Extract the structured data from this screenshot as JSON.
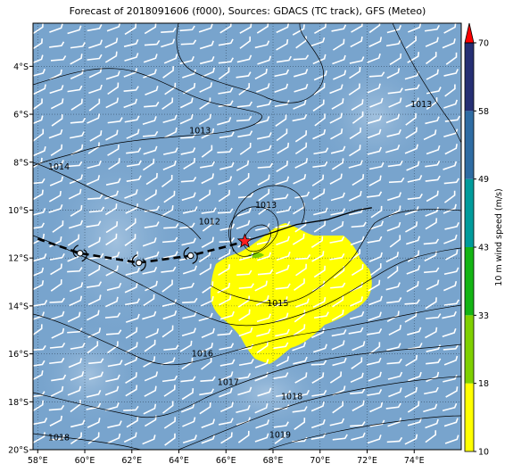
{
  "title": "Forecast of 2018091606 (f000), Sources: GDACS (TC track), GFS (Meteo)",
  "map": {
    "lon_ticks": [
      {
        "value": 58,
        "label": "58°E"
      },
      {
        "value": 60,
        "label": "60°E"
      },
      {
        "value": 62,
        "label": "62°E"
      },
      {
        "value": 64,
        "label": "64°E"
      },
      {
        "value": 66,
        "label": "66°E"
      },
      {
        "value": 68,
        "label": "68°E"
      },
      {
        "value": 70,
        "label": "70°E"
      },
      {
        "value": 72,
        "label": "72°E"
      },
      {
        "value": 74,
        "label": "74°E"
      }
    ],
    "lat_ticks": [
      {
        "value": -4,
        "label": "4°S"
      },
      {
        "value": -6,
        "label": "6°S"
      },
      {
        "value": -8,
        "label": "8°S"
      },
      {
        "value": -10,
        "label": "10°S"
      },
      {
        "value": -12,
        "label": "12°S"
      },
      {
        "value": -14,
        "label": "14°S"
      },
      {
        "value": -16,
        "label": "16°S"
      },
      {
        "value": -18,
        "label": "18°S"
      },
      {
        "value": -20,
        "label": "20°S"
      }
    ],
    "track_past": [
      [
        58,
        -11.2
      ],
      [
        59.8,
        -11.8
      ],
      [
        62.3,
        -12.2
      ],
      [
        64.5,
        -11.9
      ],
      [
        66.1,
        -11.5
      ],
      [
        66.8,
        -11.3
      ]
    ],
    "track_forecast": [
      [
        66.8,
        -11.3
      ],
      [
        67.8,
        -11.0
      ],
      [
        69.0,
        -10.6
      ],
      [
        70.3,
        -10.4
      ],
      [
        71.6,
        -10.0
      ],
      [
        72.2,
        -9.9
      ]
    ],
    "storm_positions": [
      [
        59.8,
        -11.8
      ],
      [
        62.3,
        -12.2
      ],
      [
        64.5,
        -11.9
      ]
    ],
    "current_position": [
      66.8,
      -11.3
    ],
    "pressure_labels": [
      {
        "text": "1013",
        "lon": 64.9,
        "lat": -6.8
      },
      {
        "text": "1013",
        "lon": 74.3,
        "lat": -5.7
      },
      {
        "text": "1014",
        "lon": 58.9,
        "lat": -8.3
      },
      {
        "text": "1013",
        "lon": 67.7,
        "lat": -9.9
      },
      {
        "text": "1012",
        "lon": 65.3,
        "lat": -10.6
      },
      {
        "text": "1015",
        "lon": 68.2,
        "lat": -14.0
      },
      {
        "text": "1016",
        "lon": 65.0,
        "lat": -16.1
      },
      {
        "text": "1017",
        "lon": 66.1,
        "lat": -17.3
      },
      {
        "text": "1018",
        "lon": 68.8,
        "lat": -17.9
      },
      {
        "text": "1018",
        "lon": 58.9,
        "lat": -19.6
      },
      {
        "text": "1019",
        "lon": 68.3,
        "lat": -19.5
      }
    ]
  },
  "colorbar": {
    "label": "10 m wind speed (m/s)",
    "ticks": [
      "10",
      "18",
      "33",
      "43",
      "49",
      "58",
      "70"
    ],
    "colors": [
      "#ffff00",
      "#7fd000",
      "#14b414",
      "#009b9b",
      "#2f6ca3",
      "#252f73"
    ],
    "extend_color": "#ff0000"
  },
  "colors": {
    "ocean": "#78a4cd",
    "wind_area": "#ffff00"
  }
}
